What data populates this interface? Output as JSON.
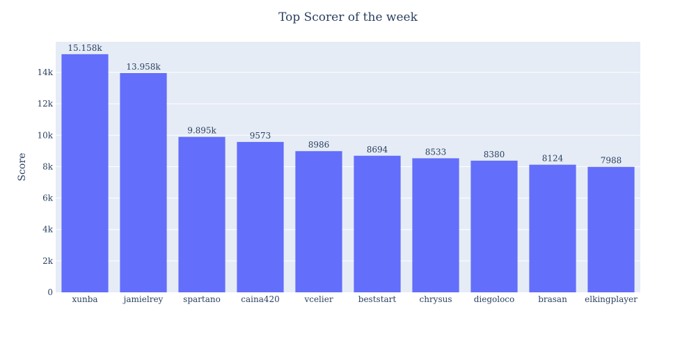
{
  "chart_data": {
    "type": "bar",
    "title": "Top Scorer of the week",
    "xlabel": "",
    "ylabel": "Score",
    "ylim": [
      0,
      15950
    ],
    "yticks": [
      0,
      2000,
      4000,
      6000,
      8000,
      10000,
      12000,
      14000
    ],
    "ytick_labels": [
      "0",
      "2k",
      "4k",
      "6k",
      "8k",
      "10k",
      "12k",
      "14k"
    ],
    "categories": [
      "xunba",
      "jamielrey",
      "spartano",
      "caina420",
      "vcelier",
      "beststart",
      "chrysus",
      "diegoloco",
      "brasan",
      "elkingplayer"
    ],
    "values": [
      15158,
      13958,
      9895,
      9573,
      8986,
      8694,
      8533,
      8380,
      8124,
      7988
    ],
    "data_labels": [
      "15.158k",
      "13.958k",
      "9.895k",
      "9573",
      "8986",
      "8694",
      "8533",
      "8380",
      "8124",
      "7988"
    ],
    "grid": true,
    "colors": {
      "bar": "#636efa",
      "plot_bg": "#e5ecf6",
      "grid": "#ffffff",
      "text": "#2a3f5f"
    }
  }
}
